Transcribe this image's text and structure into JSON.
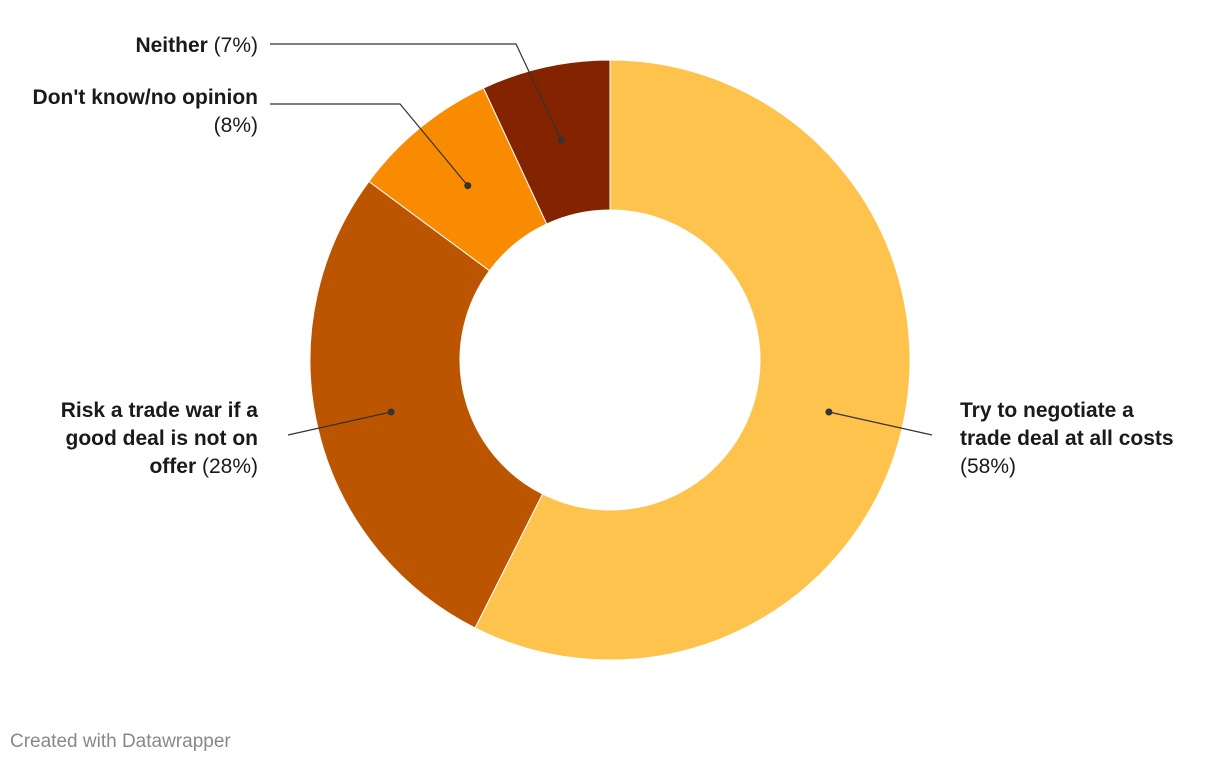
{
  "chart_data": {
    "type": "pie",
    "variant": "donut",
    "categories": [
      "Try to negotiate a trade deal at all costs",
      "Risk a trade war if a good deal is not on offer",
      "Don't know/no opinion",
      "Neither"
    ],
    "values": [
      58,
      28,
      8,
      7
    ],
    "value_labels": [
      "(58%)",
      "(28%)",
      "(8%)",
      "(7%)"
    ],
    "colors": [
      "#fec34d",
      "#bc5500",
      "#f98b00",
      "#842300"
    ],
    "label_lines": [
      [
        "Try to negotiate a",
        "trade deal at all costs"
      ],
      [
        "Risk a trade war if a",
        "good deal is not on",
        "offer"
      ],
      [
        "Don't know/no opinion"
      ],
      [
        "Neither"
      ]
    ]
  },
  "footer": {
    "credit": "Created with Datawrapper"
  }
}
